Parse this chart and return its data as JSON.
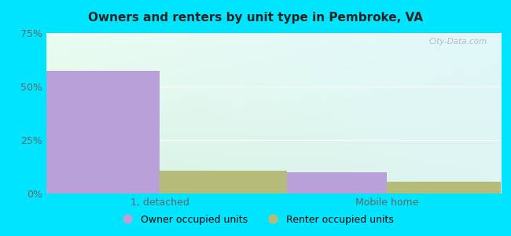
{
  "title": "Owners and renters by unit type in Pembroke, VA",
  "categories": [
    "1, detached",
    "Mobile home"
  ],
  "owner_values": [
    57.5,
    10.0
  ],
  "renter_values": [
    10.5,
    5.5
  ],
  "owner_color": "#b8a0d8",
  "renter_color": "#b5bc7a",
  "ylim": [
    0,
    75
  ],
  "yticks": [
    0,
    25,
    50,
    75
  ],
  "ytick_labels": [
    "0%",
    "25%",
    "50%",
    "75%"
  ],
  "bar_width": 0.28,
  "outer_bg": "#00e5ff",
  "legend_owner": "Owner occupied units",
  "legend_renter": "Renter occupied units",
  "watermark": "City-Data.com",
  "group_positions": [
    0.25,
    0.75
  ],
  "xlim": [
    0,
    1
  ]
}
